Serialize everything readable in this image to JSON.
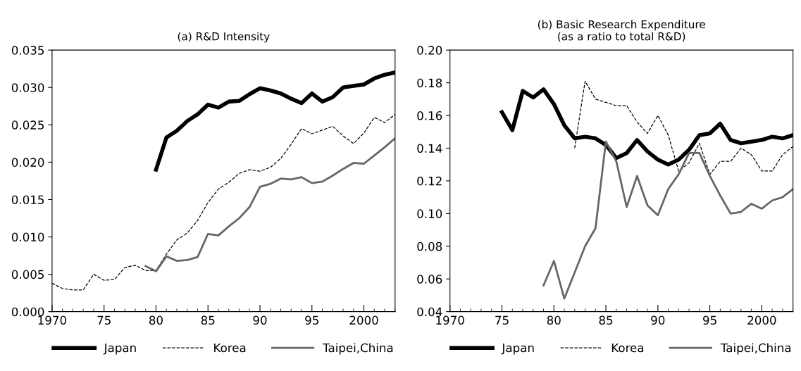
{
  "chart_data": [
    {
      "type": "line",
      "title": "(a) R&D Intensity",
      "xlim": [
        1970,
        2003
      ],
      "xticks": [
        {
          "value": 1970,
          "label": "1970"
        },
        {
          "value": 1975,
          "label": "75"
        },
        {
          "value": 1980,
          "label": "80"
        },
        {
          "value": 1985,
          "label": "85"
        },
        {
          "value": 1990,
          "label": "90"
        },
        {
          "value": 1995,
          "label": "95"
        },
        {
          "value": 2000,
          "label": "2000"
        }
      ],
      "ylim": [
        0,
        0.035
      ],
      "yticks": [
        {
          "value": 0,
          "label": "0.000"
        },
        {
          "value": 0.005,
          "label": "0.005"
        },
        {
          "value": 0.01,
          "label": "0.010"
        },
        {
          "value": 0.015,
          "label": "0.015"
        },
        {
          "value": 0.02,
          "label": "0.020"
        },
        {
          "value": 0.025,
          "label": "0.025"
        },
        {
          "value": 0.03,
          "label": "0.030"
        },
        {
          "value": 0.035,
          "label": "0.035"
        }
      ],
      "grid": false,
      "legend": "bottom",
      "marker": "none",
      "series": [
        {
          "name": "Japan",
          "color": "#000000",
          "line_style": "solid",
          "x": [
            1980,
            1981,
            1982,
            1983,
            1984,
            1985,
            1986,
            1987,
            1988,
            1989,
            1990,
            1991,
            1992,
            1993,
            1994,
            1995,
            1996,
            1997,
            1998,
            1999,
            2000,
            2001,
            2002,
            2003
          ],
          "values": [
            0.019,
            0.0233,
            0.0242,
            0.0255,
            0.0264,
            0.0277,
            0.0273,
            0.0281,
            0.0282,
            0.0291,
            0.0299,
            0.0296,
            0.0292,
            0.0285,
            0.0279,
            0.0292,
            0.0281,
            0.0287,
            0.03,
            0.0302,
            0.0304,
            0.0312,
            0.0317,
            0.032
          ]
        },
        {
          "name": "Korea",
          "color": "#000000",
          "line_style": "dashed",
          "x": [
            1970,
            1971,
            1972,
            1973,
            1974,
            1975,
            1976,
            1977,
            1978,
            1979,
            1980,
            1981,
            1982,
            1983,
            1984,
            1985,
            1986,
            1987,
            1988,
            1989,
            1990,
            1991,
            1992,
            1993,
            1994,
            1995,
            1996,
            1997,
            1998,
            1999,
            2000,
            2001,
            2002,
            2003
          ],
          "values": [
            0.0038,
            0.0031,
            0.0029,
            0.0029,
            0.005,
            0.0042,
            0.0043,
            0.0059,
            0.0062,
            0.0055,
            0.0055,
            0.0077,
            0.0096,
            0.0105,
            0.0122,
            0.0146,
            0.0164,
            0.0173,
            0.0185,
            0.019,
            0.0188,
            0.0193,
            0.0205,
            0.0224,
            0.0245,
            0.0238,
            0.0243,
            0.0248,
            0.0235,
            0.0225,
            0.0239,
            0.026,
            0.0253,
            0.0264
          ]
        },
        {
          "name": "Taipei,China",
          "color": "#666666",
          "line_style": "solid",
          "x": [
            1979,
            1980,
            1981,
            1982,
            1983,
            1984,
            1985,
            1986,
            1987,
            1988,
            1989,
            1990,
            1991,
            1992,
            1993,
            1994,
            1995,
            1996,
            1997,
            1998,
            1999,
            2000,
            2001,
            2002,
            2003
          ],
          "values": [
            0.0061,
            0.0054,
            0.0074,
            0.0068,
            0.0069,
            0.0073,
            0.0104,
            0.0102,
            0.0114,
            0.0125,
            0.014,
            0.0167,
            0.0171,
            0.0178,
            0.0177,
            0.018,
            0.0172,
            0.0174,
            0.0182,
            0.0191,
            0.0199,
            0.0198,
            0.0209,
            0.022,
            0.0232
          ]
        }
      ]
    },
    {
      "type": "line",
      "title": "(b) Basic Research Expenditure\n(as a ratio to total R&D)",
      "xlim": [
        1970,
        2003
      ],
      "xticks": [
        {
          "value": 1970,
          "label": "1970"
        },
        {
          "value": 1975,
          "label": "75"
        },
        {
          "value": 1980,
          "label": "80"
        },
        {
          "value": 1985,
          "label": "85"
        },
        {
          "value": 1990,
          "label": "90"
        },
        {
          "value": 1995,
          "label": "95"
        },
        {
          "value": 2000,
          "label": "2000"
        }
      ],
      "ylim": [
        0.04,
        0.2
      ],
      "yticks": [
        {
          "value": 0.04,
          "label": "0.04"
        },
        {
          "value": 0.06,
          "label": "0.06"
        },
        {
          "value": 0.08,
          "label": "0.08"
        },
        {
          "value": 0.1,
          "label": "0.10"
        },
        {
          "value": 0.12,
          "label": "0.12"
        },
        {
          "value": 0.14,
          "label": "0.14"
        },
        {
          "value": 0.16,
          "label": "0.16"
        },
        {
          "value": 0.18,
          "label": "0.18"
        },
        {
          "value": 0.2,
          "label": "0.20"
        }
      ],
      "grid": false,
      "legend": "bottom",
      "marker": "none",
      "series": [
        {
          "name": "Japan",
          "color": "#000000",
          "line_style": "solid",
          "x": [
            1975,
            1976,
            1977,
            1978,
            1979,
            1980,
            1981,
            1982,
            1983,
            1984,
            1985,
            1986,
            1987,
            1988,
            1989,
            1990,
            1991,
            1992,
            1993,
            1994,
            1995,
            1996,
            1997,
            1998,
            1999,
            2000,
            2001,
            2002,
            2003
          ],
          "values": [
            0.162,
            0.151,
            0.175,
            0.171,
            0.176,
            0.167,
            0.154,
            0.146,
            0.147,
            0.146,
            0.142,
            0.134,
            0.137,
            0.145,
            0.138,
            0.133,
            0.13,
            0.133,
            0.139,
            0.148,
            0.149,
            0.155,
            0.145,
            0.143,
            0.144,
            0.145,
            0.147,
            0.146,
            0.148
          ]
        },
        {
          "name": "Korea",
          "color": "#000000",
          "line_style": "dashed",
          "x": [
            1982,
            1983,
            1984,
            1985,
            1986,
            1987,
            1988,
            1989,
            1990,
            1991,
            1992,
            1993,
            1994,
            1995,
            1996,
            1997,
            1998,
            1999,
            2000,
            2001,
            2002,
            2003
          ],
          "values": [
            0.14,
            0.181,
            0.17,
            0.168,
            0.166,
            0.166,
            0.156,
            0.149,
            0.16,
            0.148,
            0.126,
            0.131,
            0.143,
            0.124,
            0.132,
            0.132,
            0.14,
            0.136,
            0.126,
            0.126,
            0.136,
            0.141
          ]
        },
        {
          "name": "Taipei,China",
          "color": "#666666",
          "line_style": "solid",
          "x": [
            1979,
            1980,
            1981,
            1982,
            1983,
            1984,
            1985,
            1986,
            1987,
            1988,
            1989,
            1990,
            1991,
            1992,
            1993,
            1994,
            1995,
            1996,
            1997,
            1998,
            1999,
            2000,
            2001,
            2002,
            2003
          ],
          "values": [
            0.056,
            0.071,
            0.048,
            0.064,
            0.08,
            0.091,
            0.144,
            0.132,
            0.104,
            0.123,
            0.105,
            0.099,
            0.115,
            0.124,
            0.137,
            0.137,
            0.123,
            0.111,
            0.1,
            0.101,
            0.106,
            0.103,
            0.108,
            0.11,
            0.115
          ]
        }
      ]
    }
  ]
}
